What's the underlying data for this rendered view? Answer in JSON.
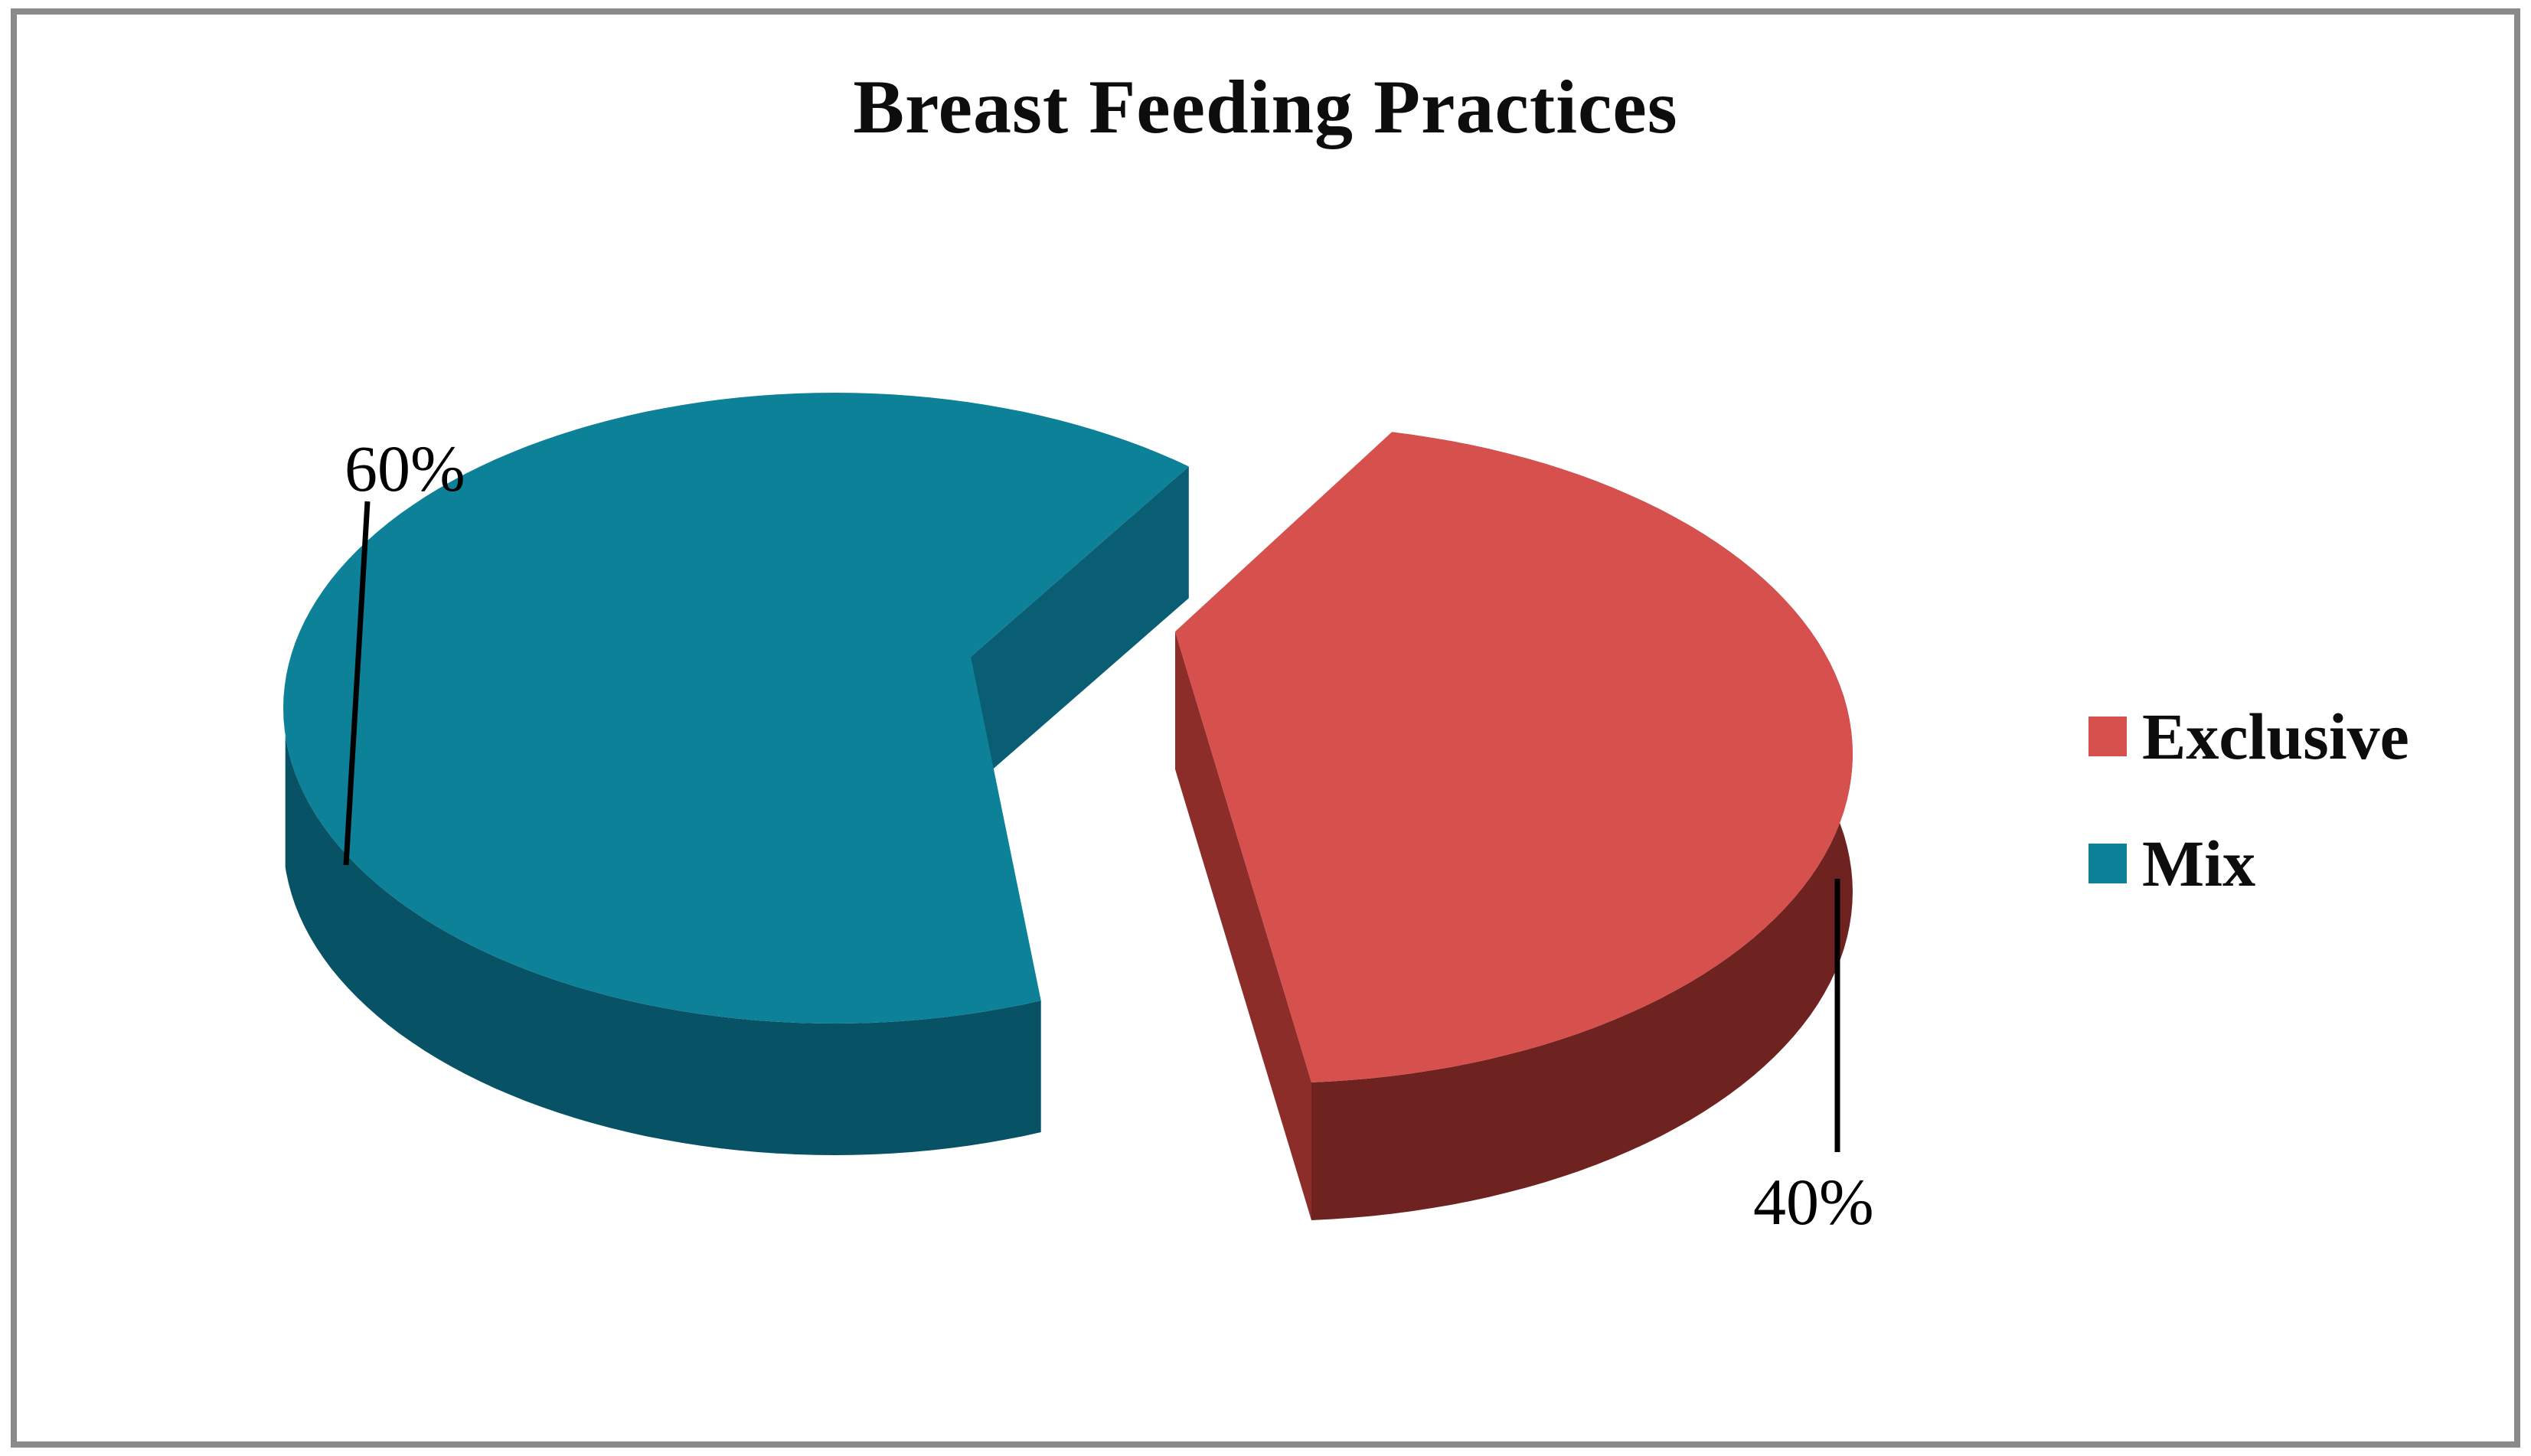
{
  "window": {
    "background": "#ffffff",
    "border_color": "#8a8a8a"
  },
  "chart_data": {
    "type": "pie",
    "style": "3d-exploded",
    "title": "Breast Feeding Practices",
    "legend_position": "right",
    "rotation_deg": 40,
    "slices": [
      {
        "label": "Exclusive",
        "value": 40,
        "display": "40%",
        "color": "#d6514e",
        "side_color": "#8c2d29",
        "rim_color": "#6f2321",
        "exploded": true
      },
      {
        "label": "Mix",
        "value": 60,
        "display": "60%",
        "color": "#0d8197",
        "side_color": "#0a5e73",
        "rim_color": "#085265",
        "exploded": false
      }
    ],
    "leader_line_color": "#000000",
    "label_color": "#000000"
  }
}
